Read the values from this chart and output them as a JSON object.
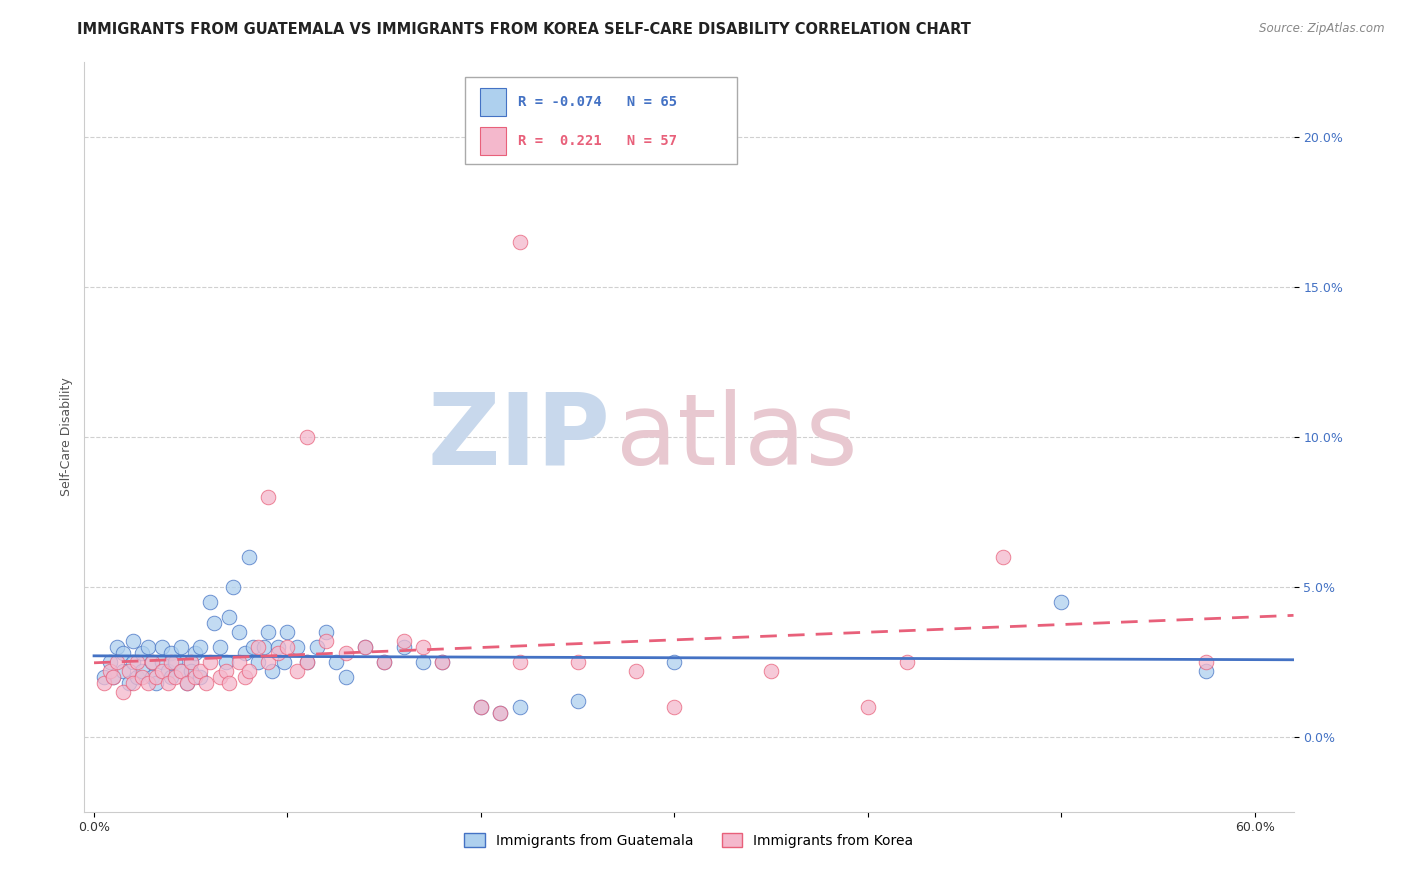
{
  "title": "IMMIGRANTS FROM GUATEMALA VS IMMIGRANTS FROM KOREA SELF-CARE DISABILITY CORRELATION CHART",
  "source": "Source: ZipAtlas.com",
  "ylabel": "Self-Care Disability",
  "xlim": [
    -0.005,
    0.62
  ],
  "ylim": [
    -0.025,
    0.225
  ],
  "xticks": [
    0.0,
    0.1,
    0.2,
    0.3,
    0.4,
    0.5,
    0.6
  ],
  "xticklabels": [
    "0.0%",
    "",
    "",
    "",
    "",
    "",
    "60.0%"
  ],
  "yticks": [
    0.0,
    0.05,
    0.1,
    0.15,
    0.2
  ],
  "yticklabels": [
    "0.0%",
    "5.0%",
    "10.0%",
    "15.0%",
    "20.0%"
  ],
  "legend_r1": "-0.074",
  "legend_n1": "65",
  "legend_r2": "0.221",
  "legend_n2": "57",
  "color_guatemala": "#AED0EE",
  "color_korea": "#F4B8CC",
  "trendline_color_guatemala": "#4472C4",
  "trendline_color_korea": "#E8607A",
  "background_color": "#FFFFFF",
  "grid_color": "#D0D0D0",
  "watermark_zip": "ZIP",
  "watermark_atlas": "atlas",
  "watermark_color_zip": "#C8D8EC",
  "watermark_color_atlas": "#E8C8D0",
  "title_fontsize": 10.5,
  "axis_label_fontsize": 9,
  "tick_fontsize": 9,
  "ytick_color": "#4472C4",
  "source_color": "#888888"
}
